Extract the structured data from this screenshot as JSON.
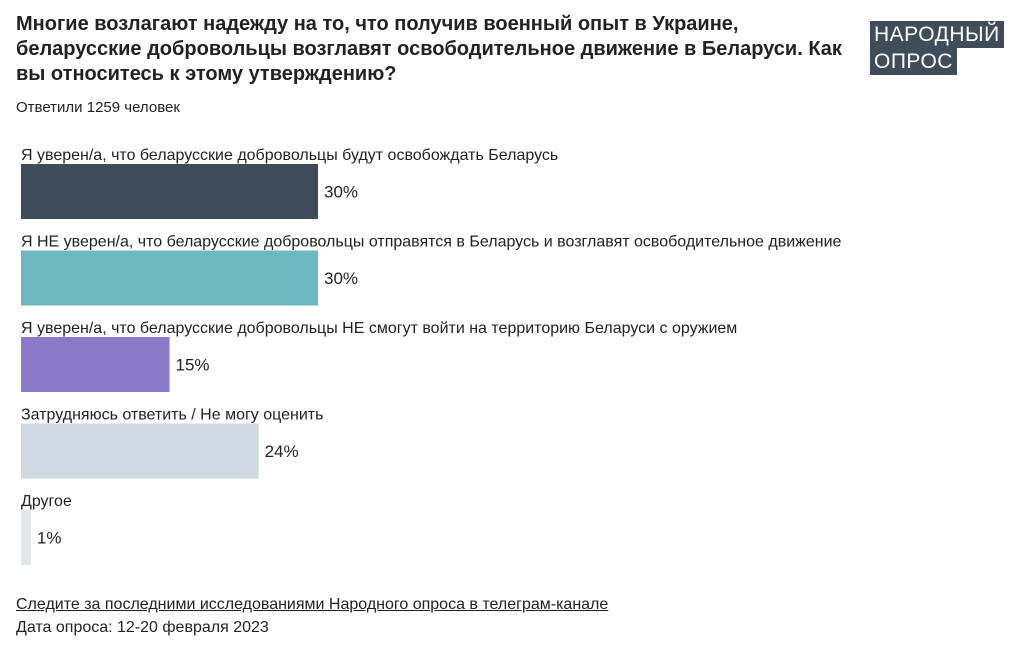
{
  "header": {
    "title": "Многие возлагают надежду на то, что получив военный опыт в Украине, беларусские добровольцы возглавят освободительное движение в Беларуси. Как вы относитесь к этому утверждению?",
    "logo_line1": "НАРОДНЫЙ",
    "logo_line2": "ОПРОС",
    "respondents": "Ответили 1259 человек"
  },
  "footer": {
    "link_text": "Следите за последними исследованиями Народного опроса в телеграм-канале",
    "survey_date": "Дата опроса: 12-20 февраля 2023"
  },
  "colors": {
    "logo_bg": "#3e4d59",
    "bar_1": "#3e4d59",
    "bar_2": "#6cb8c1",
    "bar_3": "#8a79c9",
    "bar_4": "#cfd9df",
    "bar_5": "#e3e6e8"
  },
  "chart_data": {
    "type": "bar",
    "orientation": "horizontal",
    "title": "Многие возлагают надежду на то, что получив военный опыт в Украине, беларусские добровольцы возглавят освободительное движение в Беларуси. Как вы относитесь к этому утверждению?",
    "categories": [
      "Я уверен/а, что беларусские добровольцы будут освобождать Беларусь",
      "Я НЕ уверен/а, что беларусские добровольцы отправятся в Беларусь и возглавят освободительное движение",
      "Я уверен/а, что беларусские добровольцы НЕ смогут войти на территорию Беларуси с оружием",
      "Затрудняюсь ответить / Не могу оценить",
      "Другое"
    ],
    "values": [
      30,
      30,
      15,
      24,
      1
    ],
    "value_labels": [
      "30%",
      "30%",
      "15%",
      "24%",
      "1%"
    ],
    "xlabel": "",
    "ylabel": "",
    "unit": "%",
    "grid": false,
    "legend": "none"
  }
}
